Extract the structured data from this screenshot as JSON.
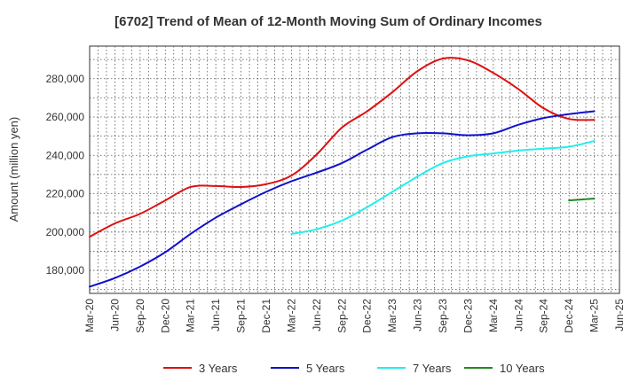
{
  "chart_data": {
    "type": "line",
    "title": "[6702]  Trend of Mean of 12-Month Moving Sum of Ordinary Incomes",
    "ylabel": "Amount (million yen)",
    "xlabel": "",
    "ylim": [
      168000,
      297000
    ],
    "yticks": [
      180000,
      200000,
      220000,
      240000,
      260000,
      280000
    ],
    "ytick_labels": [
      "180,000",
      "200,000",
      "220,000",
      "240,000",
      "260,000",
      "280,000"
    ],
    "x_start": "Mar-20",
    "x_end": "Jun-25",
    "xtick_labels": [
      "Mar-20",
      "Jun-20",
      "Sep-20",
      "Dec-20",
      "Mar-21",
      "Jun-21",
      "Sep-21",
      "Dec-21",
      "Mar-22",
      "Jun-22",
      "Sep-22",
      "Dec-22",
      "Mar-23",
      "Jun-23",
      "Sep-23",
      "Dec-23",
      "Mar-24",
      "Jun-24",
      "Sep-24",
      "Dec-24",
      "Mar-25",
      "Jun-25"
    ],
    "grid": true,
    "legend_position": "bottom",
    "series": [
      {
        "name": "3 Years",
        "color": "#dd1111",
        "start_index": 0,
        "values": [
          197500,
          204500,
          209500,
          216500,
          223500,
          224000,
          223500,
          225000,
          229500,
          240500,
          254500,
          263000,
          273000,
          284000,
          290500,
          289500,
          283000,
          274500,
          264500,
          259000,
          258500
        ]
      },
      {
        "name": "5 Years",
        "color": "#1111cc",
        "start_index": 0,
        "values": [
          171500,
          176000,
          182000,
          189500,
          199000,
          207500,
          214500,
          221000,
          226500,
          231000,
          236000,
          243000,
          249500,
          251500,
          251500,
          250500,
          251500,
          256000,
          259500,
          261500,
          263000
        ]
      },
      {
        "name": "7 Years",
        "color": "#22eeee",
        "start_index": 8,
        "values": [
          199000,
          201500,
          206000,
          213000,
          221000,
          229000,
          236000,
          239500,
          241000,
          242500,
          243500,
          244500,
          247500
        ]
      },
      {
        "name": "10 Years",
        "color": "#228822",
        "start_index": 19,
        "values": [
          216500,
          217500
        ]
      }
    ]
  }
}
